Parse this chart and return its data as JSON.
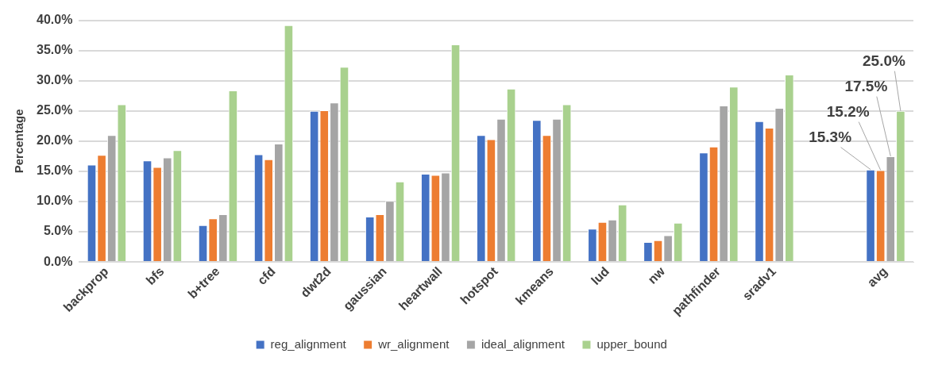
{
  "chart_data": {
    "type": "bar",
    "ylabel": "Percentage",
    "categories": [
      "backprop",
      "bfs",
      "b+tree",
      "cfd",
      "dwt2d",
      "gaussian",
      "heartwall",
      "hotspot",
      "kmeans",
      "lud",
      "nw",
      "pathfinder",
      "sradv1",
      null,
      "avg"
    ],
    "series": [
      {
        "name": "reg_alignment",
        "color": "#4472c4",
        "values": [
          16.1,
          16.8,
          6.1,
          17.8,
          25.0,
          7.5,
          14.6,
          21.0,
          23.5,
          5.5,
          3.3,
          18.1,
          23.3,
          null,
          15.3
        ],
        "value_labels": [
          null,
          null,
          null,
          null,
          null,
          null,
          null,
          null,
          null,
          null,
          null,
          null,
          null,
          null,
          "15.3%"
        ]
      },
      {
        "name": "wr_alignment",
        "color": "#ed7d31",
        "values": [
          17.7,
          15.7,
          7.2,
          17.0,
          25.1,
          7.9,
          14.4,
          20.3,
          21.0,
          6.6,
          3.6,
          19.1,
          22.2,
          null,
          15.2
        ],
        "value_labels": [
          null,
          null,
          null,
          null,
          null,
          null,
          null,
          null,
          null,
          null,
          null,
          null,
          null,
          null,
          "15.2%"
        ]
      },
      {
        "name": "ideal_alignment",
        "color": "#a5a5a5",
        "values": [
          21.0,
          17.3,
          7.9,
          19.6,
          26.4,
          10.1,
          14.8,
          23.7,
          23.7,
          7.0,
          4.4,
          25.9,
          25.5,
          null,
          17.5
        ],
        "value_labels": [
          null,
          null,
          null,
          null,
          null,
          null,
          null,
          null,
          null,
          null,
          null,
          null,
          null,
          null,
          "17.5%"
        ]
      },
      {
        "name": "upper_bound",
        "color": "#a9d18e",
        "values": [
          26.1,
          18.5,
          28.4,
          39.2,
          32.3,
          13.3,
          36.0,
          28.7,
          26.1,
          9.5,
          6.5,
          29.0,
          31.0,
          null,
          25.0
        ],
        "value_labels": [
          null,
          null,
          null,
          null,
          null,
          null,
          null,
          null,
          null,
          null,
          null,
          null,
          null,
          null,
          "25.0%"
        ]
      }
    ],
    "ylim": [
      0,
      40
    ],
    "yticks": [
      {
        "value": 0,
        "label": "0.0%"
      },
      {
        "value": 5,
        "label": "5.0%"
      },
      {
        "value": 10,
        "label": "10.0%"
      },
      {
        "value": 15,
        "label": "15.0%"
      },
      {
        "value": 20,
        "label": "20.0%"
      },
      {
        "value": 25,
        "label": "25.0%"
      },
      {
        "value": 30,
        "label": "30.0%"
      },
      {
        "value": 35,
        "label": "35.0%"
      },
      {
        "value": 40,
        "label": "40.0%"
      }
    ],
    "grid": "y",
    "legend": "bottom"
  }
}
